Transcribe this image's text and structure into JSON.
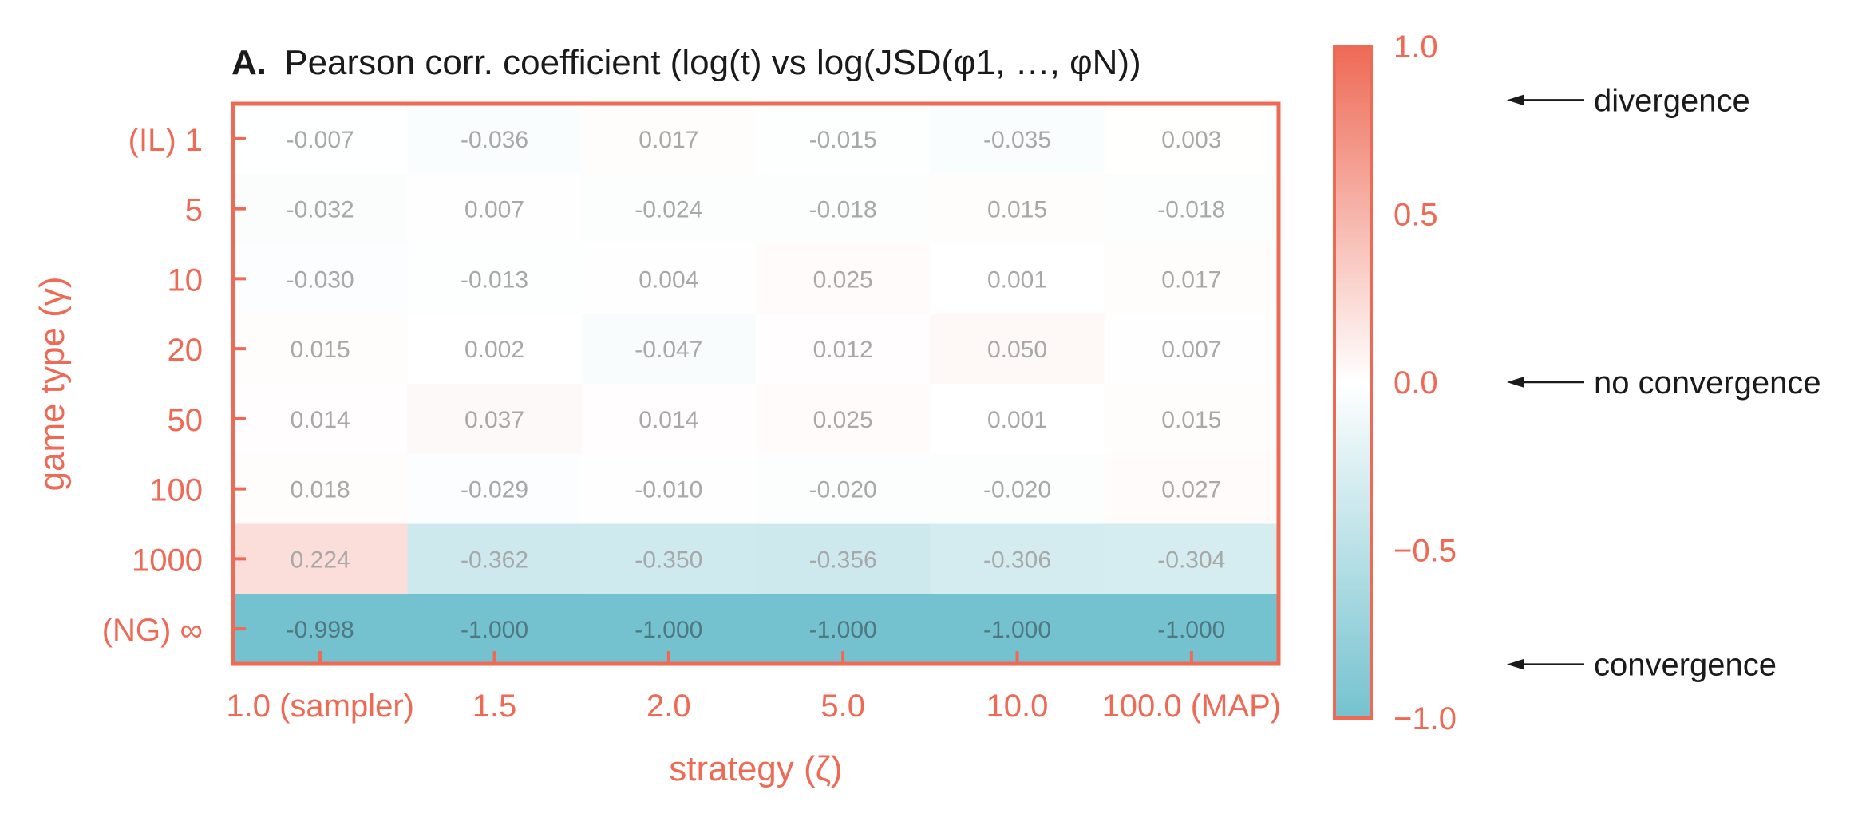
{
  "chart_data": {
    "type": "heatmap",
    "title_prefix": "A.",
    "title": "Pearson corr. coefficient (log(t) vs log(JSD(φ1, …, φN))",
    "xlabel": "strategy (ζ)",
    "ylabel": "game type (γ)",
    "x_categories": [
      "1.0 (sampler)",
      "1.5",
      "2.0",
      "5.0",
      "10.0",
      "100.0 (MAP)"
    ],
    "y_categories": [
      "(IL) 1",
      "5",
      "10",
      "20",
      "50",
      "100",
      "1000",
      "(NG) ∞"
    ],
    "values": [
      [
        -0.007,
        -0.036,
        0.017,
        -0.015,
        -0.035,
        0.003
      ],
      [
        -0.032,
        0.007,
        -0.024,
        -0.018,
        0.015,
        -0.018
      ],
      [
        -0.03,
        -0.013,
        0.004,
        0.025,
        0.001,
        0.017
      ],
      [
        0.015,
        0.002,
        -0.047,
        0.012,
        0.05,
        0.007
      ],
      [
        0.014,
        0.037,
        0.014,
        0.025,
        0.001,
        0.015
      ],
      [
        0.018,
        -0.029,
        -0.01,
        -0.02,
        -0.02,
        0.027
      ],
      [
        0.224,
        -0.362,
        -0.35,
        -0.356,
        -0.306,
        -0.304
      ],
      [
        -0.998,
        -1.0,
        -1.0,
        -1.0,
        -1.0,
        -1.0
      ]
    ],
    "value_labels": [
      [
        "-0.007",
        "-0.036",
        "0.017",
        "-0.015",
        "-0.035",
        "0.003"
      ],
      [
        "-0.032",
        "0.007",
        "-0.024",
        "-0.018",
        "0.015",
        "-0.018"
      ],
      [
        "-0.030",
        "-0.013",
        "0.004",
        "0.025",
        "0.001",
        "0.017"
      ],
      [
        "0.015",
        "0.002",
        "-0.047",
        "0.012",
        "0.050",
        "0.007"
      ],
      [
        "0.014",
        "0.037",
        "0.014",
        "0.025",
        "0.001",
        "0.015"
      ],
      [
        "0.018",
        "-0.029",
        "-0.010",
        "-0.020",
        "-0.020",
        "0.027"
      ],
      [
        "0.224",
        "-0.362",
        "-0.350",
        "-0.356",
        "-0.306",
        "-0.304"
      ],
      [
        "-0.998",
        "-1.000",
        "-1.000",
        "-1.000",
        "-1.000",
        "-1.000"
      ]
    ],
    "vmin": -1.0,
    "vmax": 1.0,
    "colorbar_ticks": [
      "1.0",
      "0.5",
      "0.0",
      "−0.5",
      "−1.0"
    ],
    "colorbar_tick_values": [
      1.0,
      0.5,
      0.0,
      -0.5,
      -1.0
    ],
    "annotations": [
      {
        "text": "divergence",
        "value": 0.84
      },
      {
        "text": "no convergence",
        "value": 0.0
      },
      {
        "text": "convergence",
        "value": -0.84
      }
    ],
    "colors": {
      "accent": "#ee6a55",
      "positive": "#ee6a55",
      "neutral": "#ffffff",
      "negative": "#74c2cf",
      "cell_text_light": "#a8a8a8",
      "cell_text_dark": "#4f7880",
      "text": "#1a1a1a"
    }
  }
}
